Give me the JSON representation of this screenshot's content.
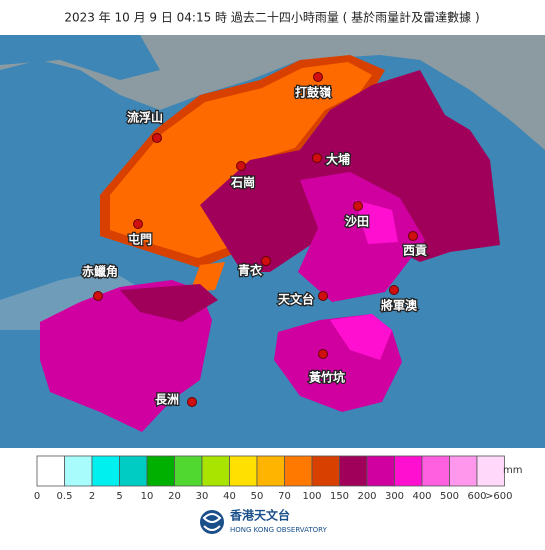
{
  "header": {
    "title": "2023 年 10 月  9 日 04:15  時   過去二十四小時雨量 ( 基於雨量計及雷達數據 )"
  },
  "places": [
    "打鼓嶺",
    "流浮山",
    "大埔",
    "石崗",
    "屯門",
    "沙田",
    "西貢",
    "青衣",
    "赤鱲角",
    "天文台",
    "將軍澳",
    "黃竹坑",
    "長洲"
  ],
  "legend": {
    "unit": "mm",
    "colors": [
      "#ffffff",
      "#a8fcfc",
      "#00f0f0",
      "#00ccc4",
      "#00b000",
      "#50d830",
      "#a8e400",
      "#ffe000",
      "#ffb400",
      "#ff7800",
      "#d84000",
      "#a0005a",
      "#d000a0",
      "#ff10d0",
      "#ff60e0",
      "#ff98ec",
      "#ffd8fa"
    ],
    "labels": [
      "0",
      "0.5",
      "2",
      "5",
      "10",
      "20",
      "30",
      "40",
      "50",
      "70",
      "100",
      "150",
      "200",
      "300",
      "400",
      "500",
      "600",
      ">600"
    ]
  },
  "logo": {
    "name": "香港天文台",
    "name_en": "HONG KONG OBSERVATORY"
  }
}
